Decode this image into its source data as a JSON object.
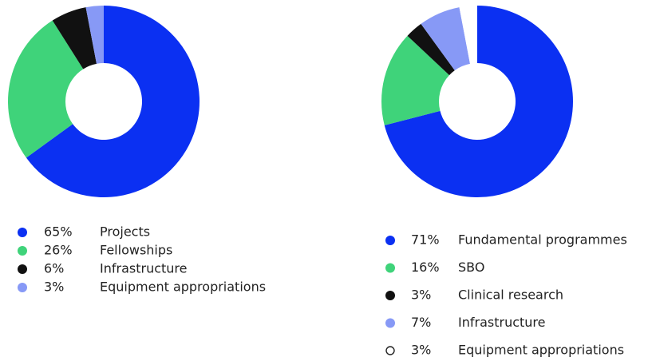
{
  "chart_data": [
    {
      "type": "donut",
      "categories": [
        "Projects",
        "Fellowships",
        "Infrastructure",
        "Equipment appropriations"
      ],
      "values": [
        65,
        26,
        6,
        3
      ],
      "value_labels": [
        "65%",
        "26%",
        "6%",
        "3%"
      ],
      "colors": [
        "#0b30f2",
        "#3fd37a",
        "#111111",
        "#8799f6"
      ]
    },
    {
      "type": "donut",
      "categories": [
        "Fundamental programmes",
        "SBO",
        "Clinical research",
        "Infrastructure",
        "Equipment appropriations"
      ],
      "values": [
        71,
        16,
        3,
        7,
        3
      ],
      "value_labels": [
        "71%",
        "16%",
        "3%",
        "7%",
        "3%"
      ],
      "colors": [
        "#0b30f2",
        "#3fd37a",
        "#111111",
        "#8799f6",
        "#ffffff"
      ]
    }
  ]
}
